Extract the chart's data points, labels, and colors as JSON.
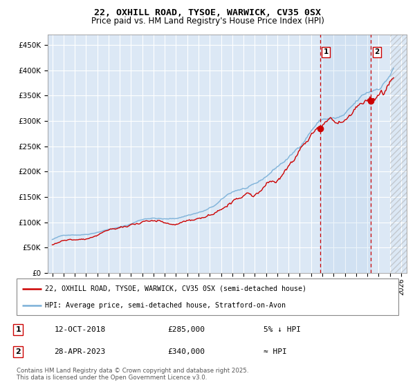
{
  "title": "22, OXHILL ROAD, TYSOE, WARWICK, CV35 0SX",
  "subtitle": "Price paid vs. HM Land Registry's House Price Index (HPI)",
  "ylabel_ticks": [
    "£0",
    "£50K",
    "£100K",
    "£150K",
    "£200K",
    "£250K",
    "£300K",
    "£350K",
    "£400K",
    "£450K"
  ],
  "ytick_vals": [
    0,
    50000,
    100000,
    150000,
    200000,
    250000,
    300000,
    350000,
    400000,
    450000
  ],
  "ylim": [
    0,
    470000
  ],
  "xlim_start": 1994.6,
  "xlim_end": 2026.5,
  "background_color": "#dce8f5",
  "fig_bg_color": "#ffffff",
  "line1_color": "#cc0000",
  "line2_color": "#7ab0d8",
  "vline1_x": 2018.79,
  "vline2_x": 2023.33,
  "vline_color": "#cc0000",
  "marker1_x": 2018.79,
  "marker1_y": 285000,
  "marker2_x": 2023.33,
  "marker2_y": 340000,
  "annotation1_label": "1",
  "annotation2_label": "2",
  "legend_label1": "22, OXHILL ROAD, TYSOE, WARWICK, CV35 0SX (semi-detached house)",
  "legend_label2": "HPI: Average price, semi-detached house, Stratford-on-Avon",
  "table_rows": [
    {
      "num": "1",
      "date": "12-OCT-2018",
      "price": "£285,000",
      "hpi_rel": "5% ↓ HPI"
    },
    {
      "num": "2",
      "date": "28-APR-2023",
      "price": "£340,000",
      "hpi_rel": "≈ HPI"
    }
  ],
  "footnote": "Contains HM Land Registry data © Crown copyright and database right 2025.\nThis data is licensed under the Open Government Licence v3.0.",
  "title_fontsize": 9.5,
  "subtitle_fontsize": 8.5,
  "tick_fontsize": 7.5,
  "legend_fontsize": 7.5,
  "hatch_start": 2025.0,
  "span_color_alpha": 0.18
}
